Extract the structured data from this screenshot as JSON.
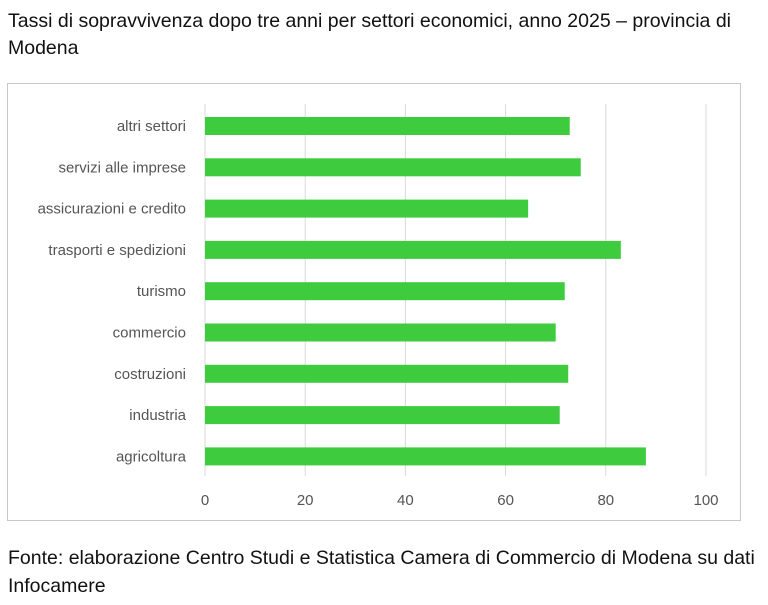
{
  "title": "Tassi di sopravvivenza dopo tre anni per settori economici, anno 2025 – provincia di Modena",
  "source": "Fonte: elaborazione Centro Studi e Statistica Camera di Commercio di Modena su dati Infocamere",
  "colors": {
    "bar": "#3ecc3e",
    "grid": "#d9d9d9",
    "axis_text": "#555555"
  },
  "chart_data": {
    "type": "bar",
    "orientation": "horizontal",
    "categories": [
      "altri settori",
      "servizi alle imprese",
      "assicurazioni e credito",
      "trasporti e spedizioni",
      "turismo",
      "commercio",
      "costruzioni",
      "industria",
      "agricoltura"
    ],
    "values": [
      72.8,
      75.0,
      64.5,
      83.0,
      71.8,
      70.0,
      72.5,
      70.8,
      88.0
    ],
    "xlim": [
      0,
      100
    ],
    "xticks": [
      0,
      20,
      40,
      60,
      80,
      100
    ],
    "grid": true,
    "legend": "none"
  }
}
